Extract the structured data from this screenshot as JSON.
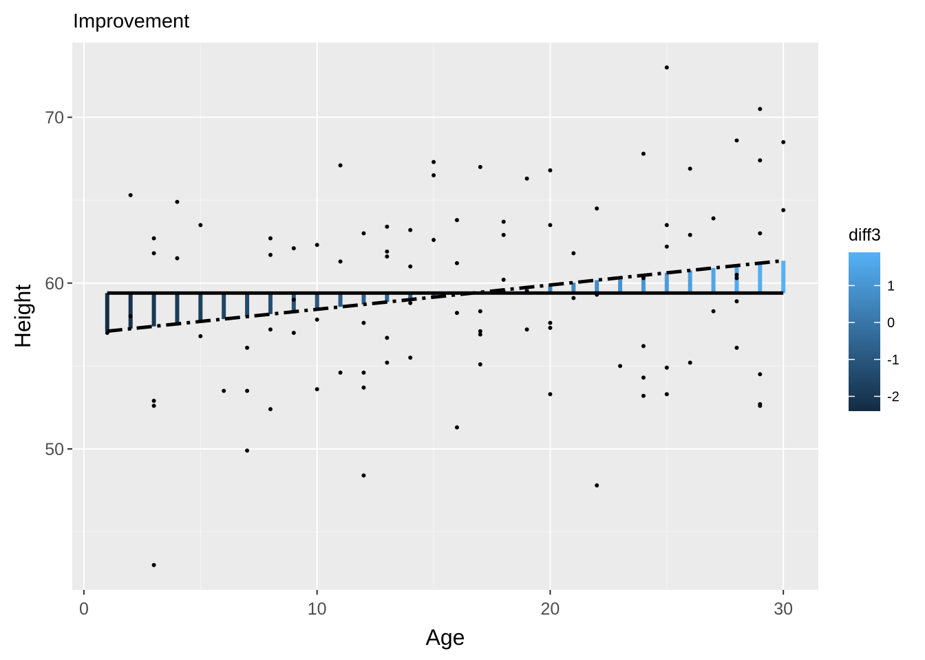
{
  "chart_data": {
    "type": "scatter",
    "title": "Improvement",
    "xlabel": "Age",
    "ylabel": "Height",
    "xlim": [
      -0.5,
      31.5
    ],
    "ylim": [
      41.5,
      74.5
    ],
    "x_ticks": [
      0,
      10,
      20,
      30
    ],
    "x_tick_labels": [
      "0",
      "10",
      "20",
      "30"
    ],
    "y_ticks": [
      50,
      60,
      70
    ],
    "y_tick_labels": [
      "50",
      "60",
      "70"
    ],
    "grid": true,
    "legend": {
      "title": "diff3",
      "placement": "right",
      "range": [
        -2.4,
        1.9
      ],
      "ticks": [
        1,
        0,
        -1,
        -2
      ],
      "tick_labels": [
        "1",
        "0",
        "-1",
        "-2"
      ],
      "color_low": "#132b43",
      "color_high": "#56b1f7"
    },
    "points": [
      {
        "x": 1,
        "y": 57.0
      },
      {
        "x": 2,
        "y": 65.3
      },
      {
        "x": 2,
        "y": 58.0
      },
      {
        "x": 3,
        "y": 62.7
      },
      {
        "x": 3,
        "y": 61.8
      },
      {
        "x": 3,
        "y": 52.9
      },
      {
        "x": 3,
        "y": 52.6
      },
      {
        "x": 3,
        "y": 43.0
      },
      {
        "x": 4,
        "y": 64.9
      },
      {
        "x": 4,
        "y": 61.5
      },
      {
        "x": 5,
        "y": 63.5
      },
      {
        "x": 5,
        "y": 56.8
      },
      {
        "x": 6,
        "y": 53.5
      },
      {
        "x": 7,
        "y": 56.1
      },
      {
        "x": 7,
        "y": 53.5
      },
      {
        "x": 7,
        "y": 49.9
      },
      {
        "x": 8,
        "y": 62.7
      },
      {
        "x": 8,
        "y": 61.7
      },
      {
        "x": 8,
        "y": 57.2
      },
      {
        "x": 8,
        "y": 52.4
      },
      {
        "x": 9,
        "y": 62.1
      },
      {
        "x": 9,
        "y": 59.0
      },
      {
        "x": 9,
        "y": 57.0
      },
      {
        "x": 10,
        "y": 62.3
      },
      {
        "x": 10,
        "y": 57.8
      },
      {
        "x": 10,
        "y": 53.6
      },
      {
        "x": 11,
        "y": 67.1
      },
      {
        "x": 11,
        "y": 61.3
      },
      {
        "x": 11,
        "y": 54.6
      },
      {
        "x": 12,
        "y": 63.0
      },
      {
        "x": 12,
        "y": 57.6
      },
      {
        "x": 12,
        "y": 54.6
      },
      {
        "x": 12,
        "y": 53.7
      },
      {
        "x": 12,
        "y": 48.4
      },
      {
        "x": 13,
        "y": 63.4
      },
      {
        "x": 13,
        "y": 61.9
      },
      {
        "x": 13,
        "y": 61.6
      },
      {
        "x": 13,
        "y": 56.7
      },
      {
        "x": 13,
        "y": 55.2
      },
      {
        "x": 14,
        "y": 63.2
      },
      {
        "x": 14,
        "y": 61.0
      },
      {
        "x": 14,
        "y": 58.8
      },
      {
        "x": 14,
        "y": 55.5
      },
      {
        "x": 15,
        "y": 67.3
      },
      {
        "x": 15,
        "y": 66.5
      },
      {
        "x": 15,
        "y": 62.6
      },
      {
        "x": 16,
        "y": 63.8
      },
      {
        "x": 16,
        "y": 61.2
      },
      {
        "x": 16,
        "y": 58.2
      },
      {
        "x": 16,
        "y": 51.3
      },
      {
        "x": 17,
        "y": 67.0
      },
      {
        "x": 17,
        "y": 58.3
      },
      {
        "x": 17,
        "y": 57.1
      },
      {
        "x": 17,
        "y": 56.9
      },
      {
        "x": 17,
        "y": 55.1
      },
      {
        "x": 18,
        "y": 63.7
      },
      {
        "x": 18,
        "y": 62.9
      },
      {
        "x": 18,
        "y": 60.2
      },
      {
        "x": 19,
        "y": 66.3
      },
      {
        "x": 19,
        "y": 59.5
      },
      {
        "x": 19,
        "y": 57.2
      },
      {
        "x": 20,
        "y": 66.8
      },
      {
        "x": 20,
        "y": 63.5
      },
      {
        "x": 20,
        "y": 57.6
      },
      {
        "x": 20,
        "y": 57.3
      },
      {
        "x": 20,
        "y": 53.3
      },
      {
        "x": 21,
        "y": 61.8
      },
      {
        "x": 21,
        "y": 59.1
      },
      {
        "x": 22,
        "y": 64.5
      },
      {
        "x": 22,
        "y": 59.3
      },
      {
        "x": 22,
        "y": 47.8
      },
      {
        "x": 23,
        "y": 55.0
      },
      {
        "x": 24,
        "y": 67.8
      },
      {
        "x": 24,
        "y": 60.3
      },
      {
        "x": 24,
        "y": 56.2
      },
      {
        "x": 24,
        "y": 54.3
      },
      {
        "x": 24,
        "y": 53.2
      },
      {
        "x": 25,
        "y": 73.0
      },
      {
        "x": 25,
        "y": 63.5
      },
      {
        "x": 25,
        "y": 62.2
      },
      {
        "x": 25,
        "y": 54.9
      },
      {
        "x": 25,
        "y": 53.3
      },
      {
        "x": 26,
        "y": 66.9
      },
      {
        "x": 26,
        "y": 62.9
      },
      {
        "x": 26,
        "y": 55.2
      },
      {
        "x": 27,
        "y": 63.9
      },
      {
        "x": 27,
        "y": 58.3
      },
      {
        "x": 28,
        "y": 68.6
      },
      {
        "x": 28,
        "y": 60.5
      },
      {
        "x": 28,
        "y": 60.3
      },
      {
        "x": 28,
        "y": 58.9
      },
      {
        "x": 28,
        "y": 56.1
      },
      {
        "x": 29,
        "y": 70.5
      },
      {
        "x": 29,
        "y": 67.4
      },
      {
        "x": 29,
        "y": 63.0
      },
      {
        "x": 29,
        "y": 54.5
      },
      {
        "x": 29,
        "y": 52.7
      },
      {
        "x": 29,
        "y": 52.6
      },
      {
        "x": 30,
        "y": 68.5
      },
      {
        "x": 30,
        "y": 64.4
      }
    ],
    "mean_line": {
      "x": [
        1,
        30
      ],
      "y": [
        59.4,
        59.4
      ],
      "style": "solid",
      "color": "#000000"
    },
    "fit_line": {
      "x": [
        1,
        30
      ],
      "y": [
        57.1,
        61.35
      ],
      "style": "dotdash",
      "color": "#000000"
    },
    "segments": {
      "x": [
        1,
        2,
        3,
        4,
        5,
        6,
        7,
        8,
        9,
        10,
        11,
        12,
        13,
        14,
        15,
        16,
        17,
        18,
        19,
        20,
        21,
        22,
        23,
        24,
        25,
        26,
        27,
        28,
        29,
        30
      ],
      "y_start": 59.4,
      "y_end": [
        57.1,
        57.25,
        57.39,
        57.54,
        57.69,
        57.83,
        57.98,
        58.13,
        58.27,
        58.42,
        58.57,
        58.71,
        58.86,
        59.01,
        59.15,
        59.3,
        59.45,
        59.59,
        59.74,
        59.88,
        60.03,
        60.18,
        60.32,
        60.47,
        60.62,
        60.76,
        60.91,
        61.06,
        61.2,
        61.35
      ],
      "diff3": [
        -2.3,
        -2.15,
        -2.01,
        -1.86,
        -1.71,
        -1.57,
        -1.42,
        -1.27,
        -1.13,
        -0.98,
        -0.83,
        -0.69,
        -0.54,
        -0.39,
        -0.25,
        -0.1,
        0.05,
        0.19,
        0.34,
        0.48,
        0.63,
        0.78,
        0.92,
        1.07,
        1.22,
        1.36,
        1.51,
        1.66,
        1.8,
        1.95
      ]
    }
  }
}
